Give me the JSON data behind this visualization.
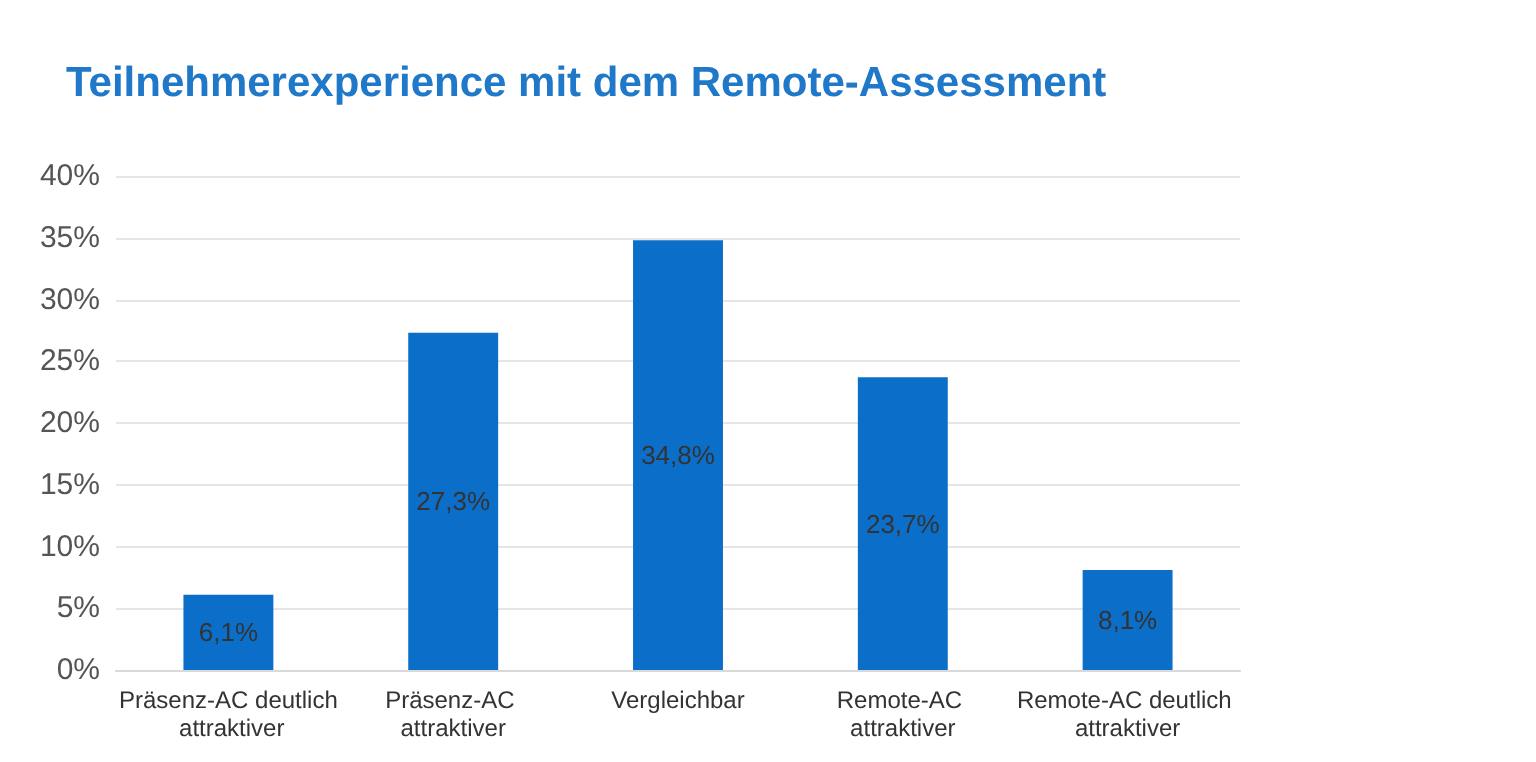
{
  "chart_data": {
    "type": "bar",
    "title": "Teilnehmerexperience mit dem Remote-Assessment",
    "categories": [
      "Präsenz-AC deutlich attraktiver",
      "Präsenz-AC attraktiver",
      "Vergleichbar",
      "Remote-AC attraktiver",
      "Remote-AC deutlich attraktiver"
    ],
    "values": [
      6.1,
      27.3,
      34.8,
      23.7,
      8.1
    ],
    "value_labels": [
      "6,1%",
      "27,3%",
      "34,8%",
      "23,7%",
      "8,1%"
    ],
    "color": "#0b6fc9",
    "ylim": [
      0,
      40
    ],
    "yticks": [
      {
        "value": 0,
        "label": "0%"
      },
      {
        "value": 5,
        "label": "5%"
      },
      {
        "value": 10,
        "label": "10%"
      },
      {
        "value": 15,
        "label": "15%"
      },
      {
        "value": 20,
        "label": "20%"
      },
      {
        "value": 25,
        "label": "25%"
      },
      {
        "value": 30,
        "label": "30%"
      },
      {
        "value": 35,
        "label": "35%"
      },
      {
        "value": 40,
        "label": "40%"
      }
    ],
    "grid": "y"
  }
}
